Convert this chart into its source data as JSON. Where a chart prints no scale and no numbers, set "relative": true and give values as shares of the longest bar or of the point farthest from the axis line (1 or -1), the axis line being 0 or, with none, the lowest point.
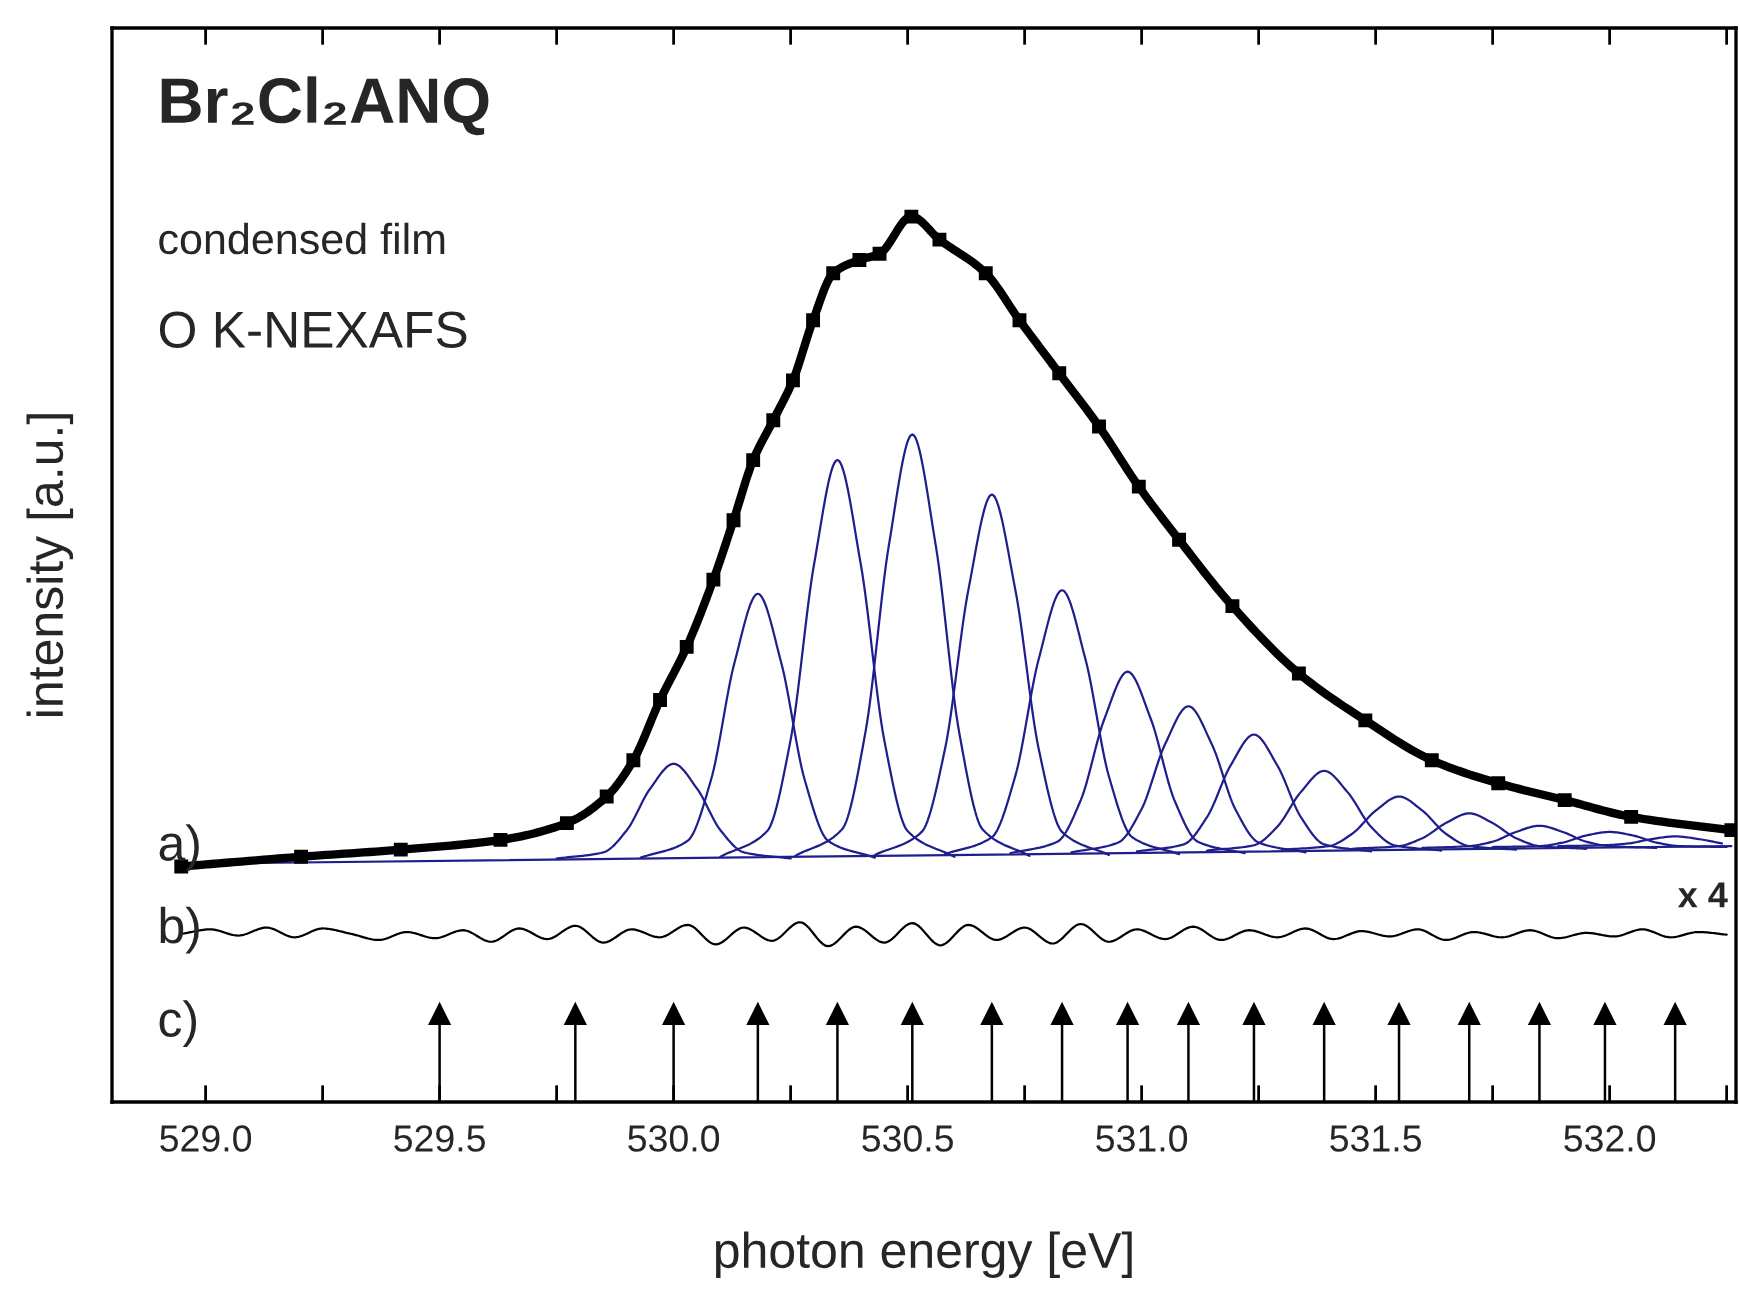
{
  "chart_data": {
    "type": "line",
    "relative": true,
    "title": "Br₂Cl₂ANQ",
    "xlabel": "photon energy [eV]",
    "ylabel": "intensity [a.u.]",
    "annotations": [
      "condensed film",
      "O K-NEXAFS",
      "a)",
      "b)",
      "c)",
      "x 4"
    ],
    "xlim": [
      528.8,
      532.27
    ],
    "xticks": [
      {
        "value": 529,
        "label": "529.0"
      },
      {
        "value": 529.25,
        "label": null
      },
      529.5,
      {
        "value": 529.75,
        "label": null
      },
      {
        "value": 530,
        "label": "530.0"
      },
      {
        "value": 530.25,
        "label": null
      },
      530.5,
      {
        "value": 530.75,
        "label": null
      },
      {
        "value": 531,
        "label": "531.0"
      },
      {
        "value": 531.25,
        "label": null
      },
      531.5,
      {
        "value": 531.75,
        "label": null
      },
      {
        "value": 532,
        "label": "532.0"
      },
      {
        "value": 532.25,
        "label": null
      }
    ],
    "series": [
      {
        "type": "line",
        "color": "#1f1f8c",
        "x": [
          529.75,
          529.85,
          529.9,
          529.95,
          530.0,
          530.05,
          530.1,
          530.15,
          530.25
        ],
        "values": [
          0.275,
          0.282,
          0.307,
          0.354,
          0.382,
          0.354,
          0.307,
          0.282,
          0.275
        ]
      },
      {
        "type": "line",
        "color": "#1f1f8c",
        "x": [
          529.93,
          530.03,
          530.08,
          530.13,
          530.18,
          530.23,
          530.28,
          530.33,
          530.43
        ],
        "values": [
          0.276,
          0.295,
          0.364,
          0.496,
          0.574,
          0.496,
          0.364,
          0.295,
          0.276
        ]
      },
      {
        "type": "line",
        "color": "#1f1f8c",
        "x": [
          530.1,
          530.2,
          530.25,
          530.3,
          530.35,
          530.4,
          530.45,
          530.5,
          530.6
        ],
        "values": [
          0.277,
          0.306,
          0.409,
          0.607,
          0.725,
          0.607,
          0.409,
          0.306,
          0.277
        ]
      },
      {
        "type": "line",
        "color": "#1f1f8c",
        "x": [
          530.26,
          530.36,
          530.41,
          530.46,
          530.51,
          530.56,
          530.61,
          530.66,
          530.76
        ],
        "values": [
          0.278,
          0.308,
          0.418,
          0.629,
          0.754,
          0.629,
          0.418,
          0.308,
          0.278
        ]
      },
      {
        "type": "line",
        "color": "#1f1f8c",
        "x": [
          530.43,
          530.53,
          530.58,
          530.63,
          530.68,
          530.73,
          530.78,
          530.83,
          530.93
        ],
        "values": [
          0.279,
          0.305,
          0.399,
          0.579,
          0.686,
          0.579,
          0.399,
          0.305,
          0.279
        ]
      },
      {
        "type": "line",
        "color": "#1f1f8c",
        "x": [
          530.58,
          530.68,
          530.73,
          530.78,
          530.83,
          530.88,
          530.93,
          530.98,
          531.08
        ],
        "values": [
          0.28,
          0.299,
          0.368,
          0.5,
          0.578,
          0.5,
          0.368,
          0.299,
          0.28
        ]
      },
      {
        "type": "line",
        "color": "#1f1f8c",
        "x": [
          530.72,
          530.82,
          530.87,
          530.92,
          530.97,
          531.02,
          531.07,
          531.12,
          531.22
        ],
        "values": [
          0.281,
          0.294,
          0.341,
          0.432,
          0.486,
          0.432,
          0.341,
          0.294,
          0.281
        ]
      },
      {
        "type": "line",
        "color": "#1f1f8c",
        "x": [
          530.85,
          530.95,
          531.0,
          531.05,
          531.1,
          531.15,
          531.2,
          531.25,
          531.35
        ],
        "values": [
          0.282,
          0.293,
          0.331,
          0.404,
          0.447,
          0.404,
          0.331,
          0.293,
          0.282
        ]
      },
      {
        "type": "line",
        "color": "#1f1f8c",
        "x": [
          530.99,
          531.09,
          531.14,
          531.19,
          531.24,
          531.29,
          531.34,
          531.39,
          531.49
        ],
        "values": [
          0.283,
          0.291,
          0.322,
          0.38,
          0.415,
          0.38,
          0.322,
          0.291,
          0.283
        ]
      },
      {
        "type": "line",
        "color": "#1f1f8c",
        "x": [
          531.14,
          531.24,
          531.29,
          531.34,
          531.39,
          531.44,
          531.49,
          531.54,
          531.64
        ],
        "values": [
          0.284,
          0.29,
          0.311,
          0.35,
          0.374,
          0.35,
          0.311,
          0.29,
          0.284
        ]
      },
      {
        "type": "line",
        "color": "#1f1f8c",
        "x": [
          531.3,
          531.4,
          531.45,
          531.5,
          531.55,
          531.6,
          531.65,
          531.7,
          531.8
        ],
        "values": [
          0.285,
          0.289,
          0.303,
          0.329,
          0.345,
          0.329,
          0.303,
          0.289,
          0.285
        ]
      },
      {
        "type": "line",
        "color": "#1f1f8c",
        "x": [
          531.45,
          531.55,
          531.6,
          531.65,
          531.7,
          531.75,
          531.8,
          531.85,
          531.95
        ],
        "values": [
          0.286,
          0.289,
          0.298,
          0.315,
          0.326,
          0.315,
          0.298,
          0.289,
          0.286
        ]
      },
      {
        "type": "line",
        "color": "#1f1f8c",
        "x": [
          531.6,
          531.7,
          531.75,
          531.8,
          531.85,
          531.9,
          531.95,
          532.0,
          532.1
        ],
        "values": [
          0.287,
          0.289,
          0.294,
          0.305,
          0.312,
          0.305,
          0.294,
          0.289,
          0.287
        ]
      },
      {
        "type": "line",
        "color": "#1f1f8c",
        "x": [
          531.75,
          531.85,
          531.9,
          531.95,
          532.0,
          532.05,
          532.1,
          532.15,
          532.25
        ],
        "values": [
          0.288,
          0.289,
          0.293,
          0.301,
          0.305,
          0.301,
          0.293,
          0.289,
          0.288
        ]
      },
      {
        "type": "line",
        "color": "#1f1f8c",
        "x": [
          531.89,
          531.99,
          532.04,
          532.09,
          532.14,
          532.19,
          532.24
        ],
        "values": [
          0.289,
          0.29,
          0.292,
          0.297,
          0.3,
          0.297,
          0.292
        ]
      },
      {
        "type": "line",
        "color": "#1f1f8c",
        "x": [
          528.95,
          532.26
        ],
        "values": [
          0.269,
          0.289
        ]
      },
      {
        "type": "line",
        "color": "#000000",
        "marker": "square",
        "x": [
          528.948,
          529.204,
          529.417,
          529.63,
          529.772,
          529.857,
          529.914,
          529.971,
          530.028,
          530.085,
          530.128,
          530.17,
          530.213,
          530.255,
          530.298,
          530.341,
          530.397,
          530.44,
          530.508,
          530.568,
          530.667,
          530.739,
          530.824,
          530.909,
          530.994,
          531.08,
          531.194,
          531.336,
          531.478,
          531.62,
          531.762,
          531.904,
          532.046,
          532.26
        ],
        "values": [
          0.266,
          0.277,
          0.285,
          0.296,
          0.315,
          0.345,
          0.386,
          0.454,
          0.514,
          0.59,
          0.657,
          0.725,
          0.77,
          0.815,
          0.883,
          0.936,
          0.951,
          0.958,
          1.0,
          0.974,
          0.936,
          0.883,
          0.823,
          0.763,
          0.695,
          0.635,
          0.56,
          0.484,
          0.431,
          0.386,
          0.36,
          0.341,
          0.322,
          0.307
        ]
      },
      {
        "type": "line",
        "color": "#000000",
        "x": [
          528.95,
          529.01,
          529.07,
          529.13,
          529.19,
          529.25,
          529.31,
          529.37,
          529.43,
          529.49,
          529.55,
          529.61,
          529.67,
          529.73,
          529.79,
          529.85,
          529.91,
          529.97,
          530.03,
          530.09,
          530.15,
          530.21,
          530.27,
          530.33,
          530.39,
          530.45,
          530.51,
          530.57,
          530.63,
          530.69,
          530.75,
          530.81,
          530.87,
          530.93,
          530.99,
          531.05,
          531.11,
          531.17,
          531.23,
          531.29,
          531.35,
          531.41,
          531.47,
          531.53,
          531.59,
          531.65,
          531.71,
          531.77,
          531.83,
          531.89,
          531.95,
          532.01,
          532.07,
          532.13,
          532.19,
          532.25
        ],
        "values": [
          0.19,
          0.195,
          0.188,
          0.197,
          0.186,
          0.196,
          0.19,
          0.183,
          0.192,
          0.185,
          0.194,
          0.181,
          0.196,
          0.184,
          0.199,
          0.18,
          0.195,
          0.186,
          0.2,
          0.178,
          0.197,
          0.182,
          0.203,
          0.176,
          0.198,
          0.18,
          0.202,
          0.177,
          0.2,
          0.183,
          0.197,
          0.179,
          0.201,
          0.181,
          0.195,
          0.184,
          0.198,
          0.183,
          0.194,
          0.186,
          0.196,
          0.184,
          0.193,
          0.187,
          0.195,
          0.183,
          0.192,
          0.186,
          0.194,
          0.185,
          0.191,
          0.187,
          0.195,
          0.186,
          0.192,
          0.189
        ]
      },
      {
        "type": "lollipop",
        "color": "#000000",
        "marker": "triangle",
        "x": [
          529.5,
          529.79,
          530.0,
          530.18,
          530.35,
          530.51,
          530.68,
          530.83,
          530.97,
          531.1,
          531.24,
          531.39,
          531.55,
          531.7,
          531.85,
          531.99,
          532.14
        ],
        "values": [
          0.1,
          0.1,
          0.1,
          0.1,
          0.1,
          0.1,
          0.1,
          0.1,
          0.1,
          0.1,
          0.1,
          0.1,
          0.1,
          0.1,
          0.1,
          0.1,
          0.1
        ]
      }
    ]
  }
}
